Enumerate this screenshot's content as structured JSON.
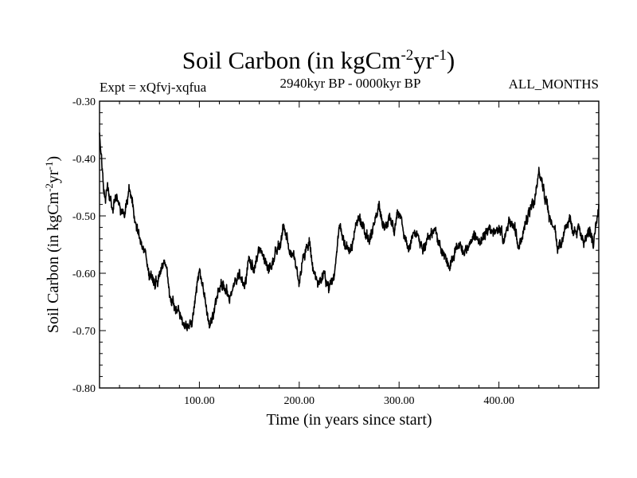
{
  "chart_data": {
    "type": "line",
    "title": {
      "main": "Soil Carbon (in kgCm",
      "sup1": "-2",
      "mid": "yr",
      "sup2": "-1",
      "end": ")"
    },
    "subtitle_left": "Expt = xQfvj-xqfua",
    "subtitle_center": "2940kyr BP - 0000kyr BP",
    "subtitle_right": "ALL_MONTHS",
    "xlabel": "Time (in years since start)",
    "ylabel": {
      "main": "Soil Carbon (in kgCm",
      "sup1": "-2",
      "mid": "yr",
      "sup2": "-1",
      "end": ")"
    },
    "xlim": [
      0,
      500
    ],
    "ylim": [
      -0.8,
      -0.3
    ],
    "x_ticks": [
      100,
      200,
      300,
      400
    ],
    "x_tick_labels": [
      "100.00",
      "200.00",
      "300.00",
      "400.00"
    ],
    "y_ticks": [
      -0.8,
      -0.7,
      -0.6,
      -0.5,
      -0.4,
      -0.3
    ],
    "y_tick_labels": [
      "-0.80",
      "-0.70",
      "-0.60",
      "-0.50",
      "-0.40",
      "-0.30"
    ],
    "series": [
      {
        "name": "Soil Carbon",
        "color": "#000000",
        "x": [
          0,
          2,
          4,
          6,
          8,
          10,
          13,
          16,
          20,
          25,
          30,
          35,
          40,
          45,
          50,
          55,
          60,
          65,
          70,
          75,
          80,
          85,
          90,
          95,
          100,
          105,
          110,
          115,
          120,
          125,
          130,
          135,
          140,
          145,
          150,
          155,
          160,
          165,
          170,
          175,
          180,
          185,
          190,
          195,
          200,
          205,
          210,
          215,
          220,
          225,
          230,
          235,
          240,
          245,
          250,
          255,
          260,
          265,
          270,
          275,
          280,
          285,
          290,
          295,
          300,
          305,
          310,
          315,
          320,
          325,
          330,
          335,
          340,
          345,
          350,
          355,
          360,
          365,
          370,
          375,
          380,
          385,
          390,
          395,
          400,
          405,
          410,
          415,
          420,
          425,
          430,
          435,
          440,
          445,
          450,
          455,
          460,
          465,
          470,
          475,
          480,
          485,
          490,
          495,
          500
        ],
        "values": [
          -0.36,
          -0.4,
          -0.45,
          -0.48,
          -0.45,
          -0.47,
          -0.49,
          -0.47,
          -0.48,
          -0.5,
          -0.45,
          -0.5,
          -0.54,
          -0.56,
          -0.6,
          -0.62,
          -0.6,
          -0.58,
          -0.63,
          -0.66,
          -0.67,
          -0.69,
          -0.7,
          -0.66,
          -0.6,
          -0.64,
          -0.69,
          -0.66,
          -0.63,
          -0.62,
          -0.64,
          -0.62,
          -0.6,
          -0.62,
          -0.58,
          -0.6,
          -0.56,
          -0.58,
          -0.6,
          -0.57,
          -0.55,
          -0.52,
          -0.55,
          -0.58,
          -0.61,
          -0.57,
          -0.55,
          -0.6,
          -0.62,
          -0.6,
          -0.63,
          -0.6,
          -0.52,
          -0.54,
          -0.57,
          -0.53,
          -0.5,
          -0.52,
          -0.55,
          -0.51,
          -0.49,
          -0.52,
          -0.5,
          -0.52,
          -0.49,
          -0.53,
          -0.55,
          -0.52,
          -0.54,
          -0.56,
          -0.54,
          -0.52,
          -0.55,
          -0.57,
          -0.59,
          -0.56,
          -0.54,
          -0.56,
          -0.55,
          -0.53,
          -0.55,
          -0.54,
          -0.52,
          -0.53,
          -0.52,
          -0.54,
          -0.5,
          -0.52,
          -0.56,
          -0.52,
          -0.5,
          -0.48,
          -0.43,
          -0.46,
          -0.5,
          -0.52,
          -0.56,
          -0.53,
          -0.51,
          -0.53,
          -0.52,
          -0.55,
          -0.52,
          -0.54,
          -0.49
        ]
      }
    ]
  }
}
